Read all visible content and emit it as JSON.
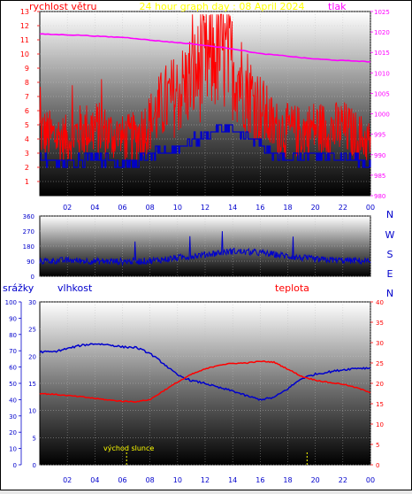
{
  "chart_data": [
    {
      "type": "line",
      "title": "24 hour graph day : 08 April 2024",
      "ylabel_left": "rychlost větru",
      "ylabel_right": "tlak",
      "x_ticks": [
        "02",
        "04",
        "06",
        "08",
        "10",
        "12",
        "14",
        "16",
        "18",
        "20",
        "22",
        "00"
      ],
      "y_left_ticks": [
        "1",
        "2",
        "3",
        "4",
        "5",
        "6",
        "7",
        "8",
        "9",
        "10",
        "11",
        "12",
        "13"
      ],
      "y_right_ticks": [
        "980",
        "985",
        "990",
        "995",
        "1000",
        "1005",
        "1010",
        "1015",
        "1020",
        "1025"
      ],
      "ylim_left": [
        0,
        13
      ],
      "ylim_right": [
        980,
        1025
      ],
      "series": [
        {
          "name": "tlak",
          "color": "#ff00ff",
          "axis": "right",
          "x": [
            0,
            1,
            2,
            3,
            4,
            5,
            6,
            7,
            8,
            9,
            10,
            11,
            12,
            13,
            14,
            15,
            16,
            17,
            18,
            19,
            20,
            21,
            22,
            23,
            24
          ],
          "y": [
            1019.5,
            1019.4,
            1019.3,
            1019.2,
            1019,
            1018.8,
            1018.7,
            1018.4,
            1018,
            1017.7,
            1017.4,
            1017.1,
            1016.7,
            1016.3,
            1015.9,
            1015.3,
            1014.7,
            1014.4,
            1014.1,
            1013.7,
            1013.4,
            1013.2,
            1013,
            1012.9,
            1012.7
          ]
        },
        {
          "name": "wind_gust",
          "color": "#ff0000",
          "axis": "left",
          "x": [
            0,
            1,
            2,
            3,
            4,
            5,
            6,
            7,
            8,
            9,
            10,
            11,
            12,
            13,
            14,
            15,
            16,
            17,
            18,
            19,
            20,
            21,
            22,
            23,
            24
          ],
          "y": [
            4.5,
            4.2,
            4,
            4.6,
            4.8,
            4.4,
            4,
            4.2,
            5.2,
            6.5,
            7.2,
            8.3,
            9.2,
            10.2,
            9.2,
            7.6,
            6.2,
            4.8,
            4.6,
            4.5,
            4.8,
            4.6,
            4.8,
            4.2,
            3.8
          ]
        },
        {
          "name": "wind_avg",
          "color": "#0000cc",
          "axis": "left",
          "x": [
            0,
            1,
            2,
            3,
            4,
            5,
            6,
            7,
            8,
            9,
            10,
            11,
            12,
            13,
            14,
            15,
            16,
            17,
            18,
            19,
            20,
            21,
            22,
            23,
            24
          ],
          "y": [
            2.5,
            2.4,
            2.3,
            2.6,
            2.7,
            2.5,
            2.3,
            2.4,
            2.8,
            3.1,
            3.4,
            3.8,
            4.2,
            4.8,
            4.6,
            4.1,
            3.6,
            2.9,
            2.7,
            2.6,
            2.8,
            2.7,
            2.8,
            2.5,
            2.2
          ]
        }
      ]
    },
    {
      "type": "line",
      "y_ticks": [
        "360",
        "270",
        "180",
        "90",
        "0"
      ],
      "y_right_labels": [
        "N",
        "W",
        "S",
        "E",
        "N"
      ],
      "ylim": [
        0,
        360
      ],
      "series": [
        {
          "name": "wind_direction",
          "color": "#0000cc",
          "x": [
            0,
            2,
            4,
            6,
            8,
            10,
            12,
            14,
            16,
            18,
            20,
            22,
            24
          ],
          "y": [
            90,
            95,
            90,
            88,
            92,
            110,
            130,
            150,
            140,
            120,
            100,
            95,
            90
          ]
        }
      ]
    },
    {
      "type": "line",
      "label_srazky": "srážky",
      "label_vlhkost": "vlhkost",
      "label_teplota": "teplota",
      "annotation": "východ slunce",
      "sunrise_x": 6.3,
      "sunset_x": 19.4,
      "x_ticks": [
        "02",
        "04",
        "06",
        "08",
        "10",
        "12",
        "14",
        "16",
        "18",
        "20",
        "22",
        "00"
      ],
      "srazky_ticks": [
        "0",
        "10",
        "20",
        "30",
        "40",
        "50",
        "60",
        "70",
        "80",
        "90",
        "100"
      ],
      "vlhkost_ticks": [
        "0",
        "5",
        "10",
        "15",
        "20",
        "25",
        "30"
      ],
      "teplota_ticks": [
        "0",
        "5",
        "10",
        "15",
        "20",
        "25",
        "30",
        "35",
        "40"
      ],
      "ylim_srazky": [
        0,
        100
      ],
      "ylim_vlhkost": [
        0,
        30
      ],
      "ylim_teplota": [
        0,
        40
      ],
      "series": [
        {
          "name": "vlhkost",
          "color": "#0000cc",
          "axis": "vlhkost",
          "x": [
            0,
            1,
            2,
            3,
            4,
            5,
            6,
            7,
            8,
            9,
            10,
            11,
            12,
            13,
            14,
            15,
            16,
            17,
            18,
            19,
            20,
            21,
            22,
            23,
            24
          ],
          "y": [
            20.8,
            20.8,
            21.4,
            22,
            22.3,
            22.1,
            21.7,
            21.6,
            20.5,
            18.6,
            16.5,
            15.5,
            15,
            14.2,
            13.6,
            12.7,
            12,
            12.4,
            14,
            15.9,
            16.7,
            17.1,
            17.5,
            17.8,
            17.8
          ]
        },
        {
          "name": "teplota",
          "color": "#ff0000",
          "axis": "teplota",
          "x": [
            0,
            1,
            2,
            3,
            4,
            5,
            6,
            7,
            8,
            9,
            10,
            11,
            12,
            13,
            14,
            15,
            16,
            17,
            18,
            19,
            20,
            21,
            22,
            23,
            24
          ],
          "y": [
            17.5,
            17.3,
            17,
            16.7,
            16.3,
            15.9,
            15.6,
            15.5,
            16,
            18.2,
            20.3,
            22.2,
            23.5,
            24.5,
            24.9,
            25,
            25.4,
            25.2,
            23.5,
            21.7,
            20.8,
            20.2,
            19.8,
            18.9,
            17.8
          ]
        }
      ]
    }
  ]
}
